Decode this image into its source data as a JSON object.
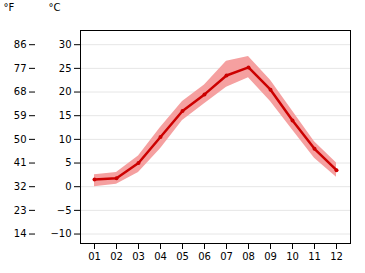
{
  "chart_data": {
    "type": "line",
    "categories": [
      "01",
      "02",
      "03",
      "04",
      "05",
      "06",
      "07",
      "08",
      "09",
      "10",
      "11",
      "12"
    ],
    "series": [
      {
        "type": "area",
        "color": "#f5a0a0",
        "low": [
          0.0,
          0.5,
          3.0,
          8.0,
          14.0,
          17.5,
          21.0,
          23.0,
          18.0,
          12.0,
          6.0,
          2.0
        ],
        "high": [
          2.5,
          3.0,
          6.5,
          12.5,
          18.0,
          21.5,
          26.5,
          27.5,
          22.5,
          16.0,
          9.5,
          5.0
        ]
      },
      {
        "type": "line",
        "color": "#cc0000",
        "marker": "circle",
        "values": [
          1.5,
          1.8,
          5.0,
          10.5,
          16.0,
          19.5,
          23.5,
          25.2,
          20.5,
          14.0,
          8.0,
          3.5
        ]
      }
    ],
    "ylabel": "°C",
    "ylim": [
      -12,
      33
    ],
    "yticks": [
      -10,
      -5,
      0,
      5,
      10,
      15,
      20,
      25,
      30
    ],
    "y2label": "°F",
    "y2lim": [
      10.4,
      91.4
    ],
    "y2ticks": [
      14,
      23,
      32,
      41,
      50,
      59,
      68,
      77,
      86
    ],
    "grid": true
  }
}
